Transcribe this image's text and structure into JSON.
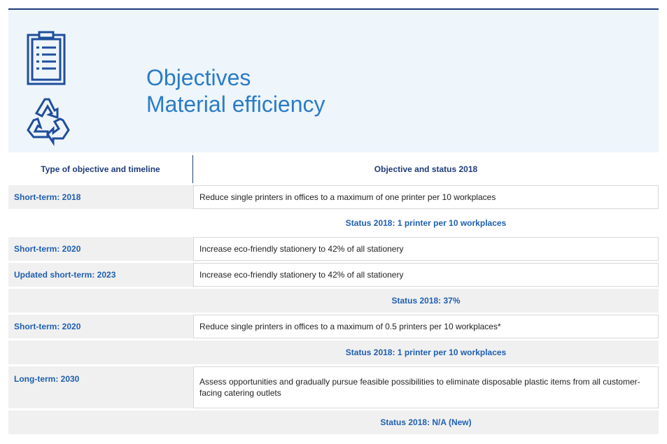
{
  "header": {
    "title": [
      "Objectives",
      "Material efficiency"
    ]
  },
  "table": {
    "columns": [
      "Type of objective and timeline",
      "Objective and status 2018"
    ],
    "rows": [
      {
        "type": "Short-term: 2018",
        "objective": "Reduce single printers in offices to a maximum of one printer per 10 workplaces"
      },
      {
        "status": "Status 2018: 1 printer per 10 workplaces"
      },
      {
        "type": "Short-term: 2020",
        "objective": "Increase eco-friendly stationery to 42% of all stationery"
      },
      {
        "type": "Updated short-term: 2023",
        "objective": "Increase eco-friendly stationery to 42% of all stationery"
      },
      {
        "status": "Status 2018: 37%"
      },
      {
        "type": "Short-term: 2020",
        "objective": "Reduce single printers in offices to a maximum of 0.5 printers per 10 workplaces*"
      },
      {
        "status": "Status 2018: 1 printer per 10 workplaces"
      },
      {
        "type": "Long-term: 2030",
        "objective": "Assess opportunities and gradually pursue feasible possibilities to eliminate disposable plastic items from all customer-facing catering outlets"
      },
      {
        "status": "Status 2018: N/A (New)"
      }
    ]
  }
}
